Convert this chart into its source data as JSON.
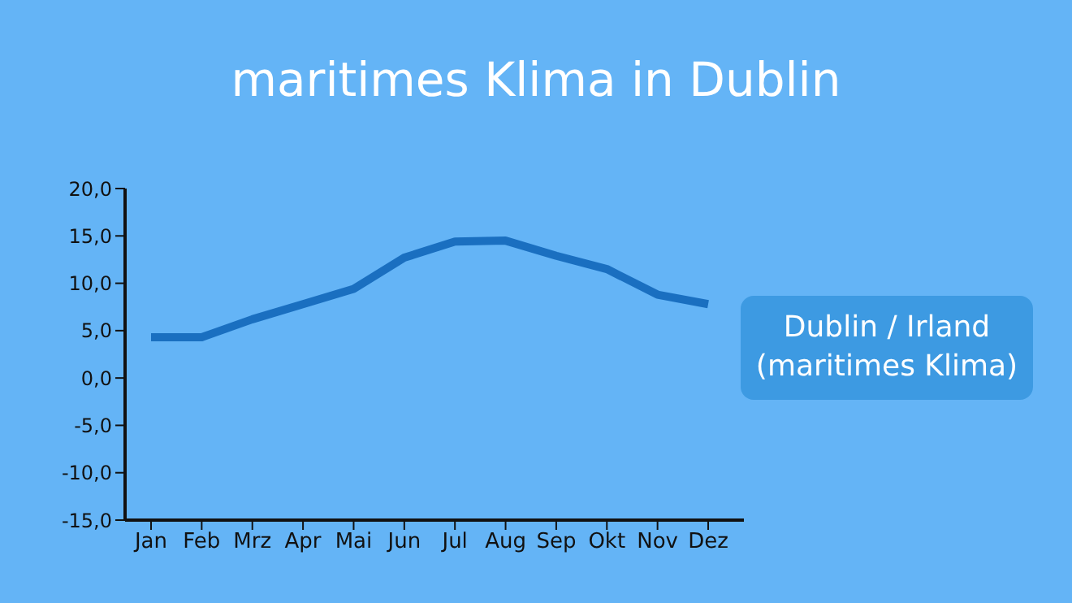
{
  "chart_data": {
    "type": "line",
    "title": "maritimes Klima in Dublin",
    "categories": [
      "Jan",
      "Feb",
      "Mrz",
      "Apr",
      "Mai",
      "Jun",
      "Jul",
      "Aug",
      "Sep",
      "Okt",
      "Nov",
      "Dez"
    ],
    "series": [
      {
        "color": "#1a6fc0",
        "values": [
          4.3,
          4.3,
          6.2,
          7.8,
          9.4,
          12.7,
          14.4,
          14.5,
          12.9,
          11.5,
          8.8,
          7.8
        ]
      }
    ],
    "ylim": [
      -15,
      20
    ],
    "yticks": [
      {
        "value": -15,
        "label": "-15,0"
      },
      {
        "value": -10,
        "label": "-10,0"
      },
      {
        "value": -5,
        "label": "-5,0"
      },
      {
        "value": 0,
        "label": "0,0"
      },
      {
        "value": 5,
        "label": "5,0"
      },
      {
        "value": 10,
        "label": "10,0"
      },
      {
        "value": 15,
        "label": "15,0"
      },
      {
        "value": 20,
        "label": "20,0"
      }
    ],
    "annotations": [
      "Dublin / Irland (maritimes Klima)"
    ],
    "marker": "none",
    "line_style": "solid"
  }
}
